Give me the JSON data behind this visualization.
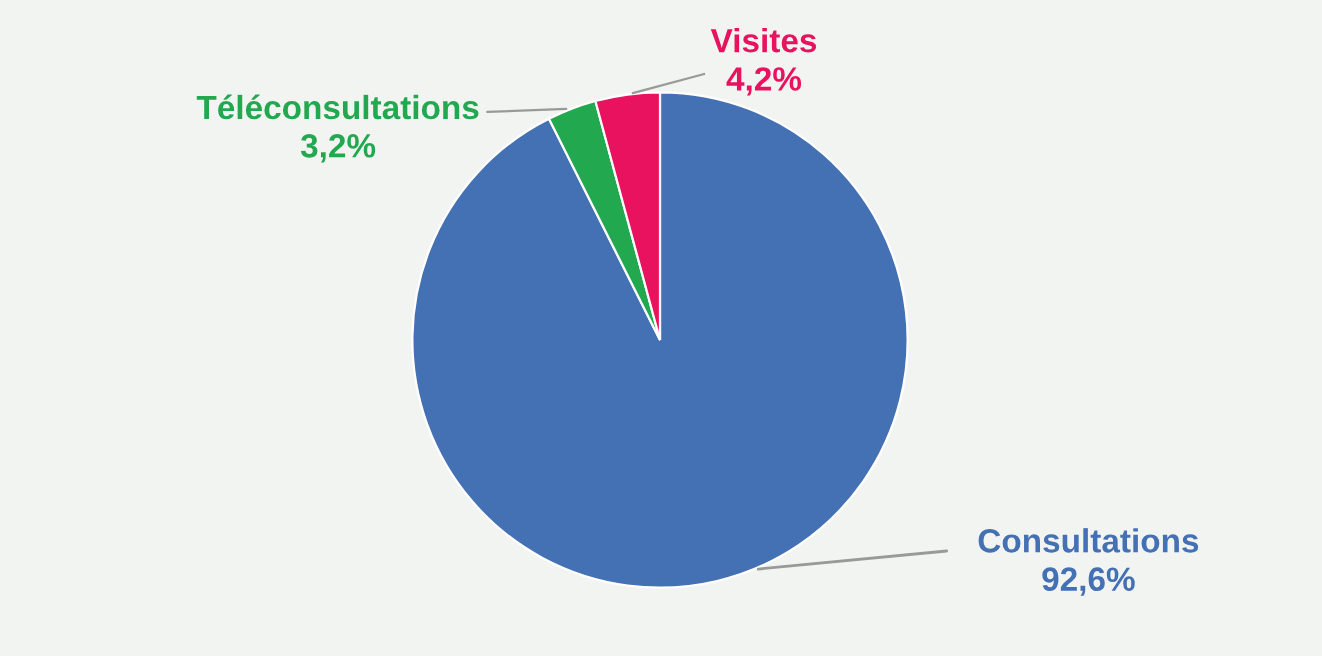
{
  "chart_data": {
    "type": "pie",
    "categories": [
      "Consultations",
      "Téléconsultations",
      "Visites"
    ],
    "values": [
      92.6,
      3.2,
      4.2
    ],
    "value_labels": [
      "92,6%",
      "3,2%",
      "4,2%"
    ],
    "colors": [
      "#4470b4",
      "#22a84e",
      "#e8125f"
    ]
  }
}
